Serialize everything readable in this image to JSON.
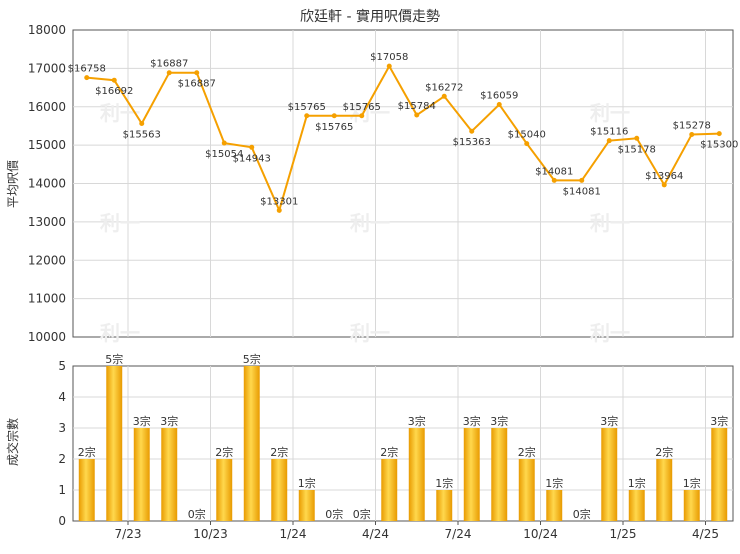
{
  "title": "欣廷軒 - 實用呎價走勢",
  "ylabel_top": "平均呎價",
  "ylabel_bottom": "成交宗數",
  "colors": {
    "line": "#f5a000",
    "bar_light": "#ffd24d",
    "bar_dark": "#e89a00",
    "grid": "#d8d8d8",
    "axis": "#555555",
    "text": "#333333"
  },
  "watermark": "利一",
  "chart_data": [
    {
      "type": "line",
      "ylabel": "平均呎價",
      "ylim": [
        10000,
        18000
      ],
      "yticks": [
        10000,
        11000,
        12000,
        13000,
        14000,
        15000,
        16000,
        17000,
        18000
      ],
      "values": [
        16758,
        16692,
        15563,
        16887,
        16887,
        15054,
        14943,
        13301,
        15765,
        15765,
        15765,
        17058,
        15784,
        16272,
        15363,
        16059,
        15040,
        14081,
        14081,
        15116,
        15178,
        13964,
        15278,
        15300
      ],
      "labels": [
        "$16758",
        "$16692",
        "$15563",
        "$16887",
        "$16887",
        "$15054",
        "$14943",
        "$13301",
        "$15765",
        "$15765",
        "$15765",
        "$17058",
        "$15784",
        "$16272",
        "$15363",
        "$16059",
        "$15040",
        "$14081",
        "$14081",
        "$15116",
        "$15178",
        "$13964",
        "$15278",
        "$15300"
      ],
      "grid": true
    },
    {
      "type": "bar",
      "ylabel": "成交宗數",
      "ylim": [
        0,
        5
      ],
      "yticks": [
        0,
        1,
        2,
        3,
        4,
        5
      ],
      "values": [
        2,
        5,
        3,
        3,
        0,
        2,
        5,
        2,
        1,
        0,
        0,
        2,
        3,
        1,
        3,
        3,
        2,
        1,
        0,
        3,
        1,
        2,
        1,
        3
      ],
      "labels": [
        "2宗",
        "5宗",
        "3宗",
        "3宗",
        "0宗",
        "2宗",
        "5宗",
        "2宗",
        "1宗",
        "0宗",
        "0宗",
        "2宗",
        "3宗",
        "1宗",
        "3宗",
        "3宗",
        "2宗",
        "1宗",
        "0宗",
        "3宗",
        "1宗",
        "2宗",
        "1宗",
        "3宗"
      ],
      "x_tick_labels": [
        "7/23",
        "10/23",
        "1/24",
        "4/24",
        "7/24",
        "10/24",
        "1/25",
        "4/25"
      ],
      "x_tick_positions": [
        2,
        5,
        8,
        11,
        14,
        17,
        20,
        23
      ],
      "grid": true
    }
  ]
}
